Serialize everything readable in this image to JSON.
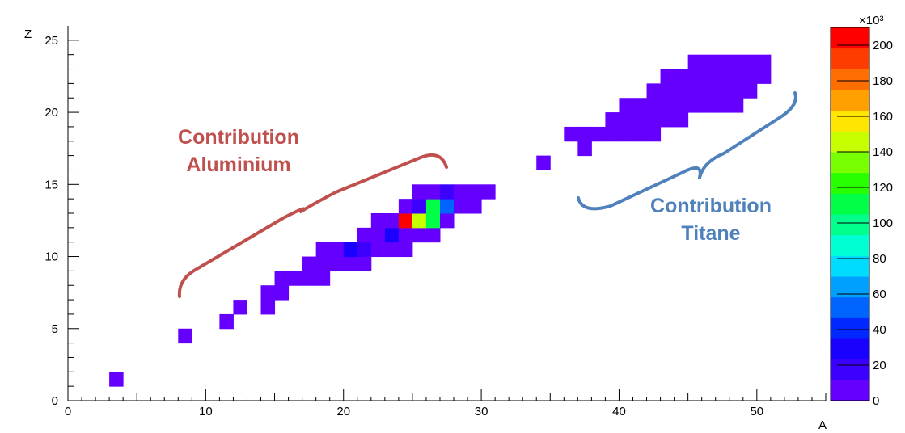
{
  "chart_data": {
    "type": "heatmap",
    "xlabel": "A",
    "ylabel": "Z",
    "xlim": [
      0,
      55
    ],
    "ylim": [
      0,
      26
    ],
    "x_ticks": [
      0,
      10,
      20,
      30,
      40,
      50
    ],
    "y_ticks": [
      0,
      5,
      10,
      15,
      20,
      25
    ],
    "grid": false,
    "colorbar": {
      "multiplier": "×10³",
      "range": [
        0,
        210
      ],
      "ticks": [
        0,
        20,
        40,
        60,
        80,
        100,
        120,
        140,
        160,
        180,
        200
      ],
      "colors": [
        "#6500ff",
        "#3c00ff",
        "#1a00ff",
        "#0028ff",
        "#0064ff",
        "#00a0ff",
        "#00dcff",
        "#00ffd2",
        "#00ff8c",
        "#00ff46",
        "#28ff00",
        "#78ff00",
        "#c8ff00",
        "#ffe600",
        "#ffa000",
        "#ff6e00",
        "#ff3c00",
        "#ff0000"
      ]
    },
    "cell_size": [
      1,
      1
    ],
    "cells": [
      {
        "a": 3,
        "z": 1,
        "value": 2
      },
      {
        "a": 8,
        "z": 4,
        "value": 2
      },
      {
        "a": 11,
        "z": 5,
        "value": 2
      },
      {
        "a": 12,
        "z": 6,
        "value": 2
      },
      {
        "a": 14,
        "z": 6,
        "value": 2
      },
      {
        "a": 14,
        "z": 7,
        "value": 2
      },
      {
        "a": 15,
        "z": 7,
        "value": 2
      },
      {
        "a": 15,
        "z": 8,
        "value": 2
      },
      {
        "a": 16,
        "z": 8,
        "value": 2
      },
      {
        "a": 17,
        "z": 8,
        "value": 2
      },
      {
        "a": 18,
        "z": 8,
        "value": 2
      },
      {
        "a": 17,
        "z": 9,
        "value": 2
      },
      {
        "a": 18,
        "z": 9,
        "value": 2
      },
      {
        "a": 19,
        "z": 9,
        "value": 2
      },
      {
        "a": 20,
        "z": 9,
        "value": 2
      },
      {
        "a": 21,
        "z": 9,
        "value": 2
      },
      {
        "a": 18,
        "z": 10,
        "value": 2
      },
      {
        "a": 19,
        "z": 10,
        "value": 2
      },
      {
        "a": 20,
        "z": 10,
        "value": 25
      },
      {
        "a": 21,
        "z": 10,
        "value": 12
      },
      {
        "a": 22,
        "z": 10,
        "value": 2
      },
      {
        "a": 23,
        "z": 10,
        "value": 2
      },
      {
        "a": 24,
        "z": 10,
        "value": 2
      },
      {
        "a": 21,
        "z": 11,
        "value": 2
      },
      {
        "a": 22,
        "z": 11,
        "value": 2
      },
      {
        "a": 23,
        "z": 11,
        "value": 30
      },
      {
        "a": 24,
        "z": 11,
        "value": 2
      },
      {
        "a": 25,
        "z": 11,
        "value": 2
      },
      {
        "a": 26,
        "z": 11,
        "value": 2
      },
      {
        "a": 22,
        "z": 12,
        "value": 2
      },
      {
        "a": 23,
        "z": 12,
        "value": 2
      },
      {
        "a": 24,
        "z": 12,
        "value": 205
      },
      {
        "a": 25,
        "z": 12,
        "value": 145
      },
      {
        "a": 26,
        "z": 12,
        "value": 115
      },
      {
        "a": 27,
        "z": 12,
        "value": 2
      },
      {
        "a": 24,
        "z": 13,
        "value": 2
      },
      {
        "a": 25,
        "z": 13,
        "value": 15
      },
      {
        "a": 26,
        "z": 13,
        "value": 110
      },
      {
        "a": 27,
        "z": 13,
        "value": 50
      },
      {
        "a": 28,
        "z": 13,
        "value": 2
      },
      {
        "a": 29,
        "z": 13,
        "value": 2
      },
      {
        "a": 25,
        "z": 14,
        "value": 2
      },
      {
        "a": 26,
        "z": 14,
        "value": 2
      },
      {
        "a": 27,
        "z": 14,
        "value": 12
      },
      {
        "a": 28,
        "z": 14,
        "value": 2
      },
      {
        "a": 29,
        "z": 14,
        "value": 2
      },
      {
        "a": 30,
        "z": 14,
        "value": 2
      },
      {
        "a": 34,
        "z": 16,
        "value": 2
      },
      {
        "a": 37,
        "z": 17,
        "value": 2
      },
      {
        "a": 36,
        "z": 18,
        "value": 2
      },
      {
        "a": 37,
        "z": 18,
        "value": 2
      },
      {
        "a": 38,
        "z": 18,
        "value": 2
      },
      {
        "a": 39,
        "z": 18,
        "value": 2
      },
      {
        "a": 40,
        "z": 18,
        "value": 2
      },
      {
        "a": 41,
        "z": 18,
        "value": 2
      },
      {
        "a": 42,
        "z": 18,
        "value": 2
      },
      {
        "a": 39,
        "z": 19,
        "value": 2
      },
      {
        "a": 40,
        "z": 19,
        "value": 2
      },
      {
        "a": 41,
        "z": 19,
        "value": 2
      },
      {
        "a": 42,
        "z": 19,
        "value": 2
      },
      {
        "a": 43,
        "z": 19,
        "value": 2
      },
      {
        "a": 44,
        "z": 19,
        "value": 2
      },
      {
        "a": 40,
        "z": 20,
        "value": 2
      },
      {
        "a": 41,
        "z": 20,
        "value": 2
      },
      {
        "a": 42,
        "z": 20,
        "value": 2
      },
      {
        "a": 43,
        "z": 20,
        "value": 2
      },
      {
        "a": 44,
        "z": 20,
        "value": 2
      },
      {
        "a": 45,
        "z": 20,
        "value": 2
      },
      {
        "a": 46,
        "z": 20,
        "value": 2
      },
      {
        "a": 47,
        "z": 20,
        "value": 2
      },
      {
        "a": 48,
        "z": 20,
        "value": 2
      },
      {
        "a": 42,
        "z": 21,
        "value": 2
      },
      {
        "a": 43,
        "z": 21,
        "value": 2
      },
      {
        "a": 44,
        "z": 21,
        "value": 2
      },
      {
        "a": 45,
        "z": 21,
        "value": 2
      },
      {
        "a": 46,
        "z": 21,
        "value": 2
      },
      {
        "a": 47,
        "z": 21,
        "value": 2
      },
      {
        "a": 48,
        "z": 21,
        "value": 2
      },
      {
        "a": 49,
        "z": 21,
        "value": 2
      },
      {
        "a": 43,
        "z": 22,
        "value": 2
      },
      {
        "a": 44,
        "z": 22,
        "value": 2
      },
      {
        "a": 45,
        "z": 22,
        "value": 2
      },
      {
        "a": 46,
        "z": 22,
        "value": 2
      },
      {
        "a": 47,
        "z": 22,
        "value": 2
      },
      {
        "a": 48,
        "z": 22,
        "value": 2
      },
      {
        "a": 49,
        "z": 22,
        "value": 2
      },
      {
        "a": 50,
        "z": 22,
        "value": 2
      },
      {
        "a": 45,
        "z": 23,
        "value": 2
      },
      {
        "a": 46,
        "z": 23,
        "value": 2
      },
      {
        "a": 47,
        "z": 23,
        "value": 2
      },
      {
        "a": 48,
        "z": 23,
        "value": 2
      },
      {
        "a": 49,
        "z": 23,
        "value": 2
      },
      {
        "a": 50,
        "z": 23,
        "value": 2
      }
    ],
    "annotations": [
      {
        "id": "aluminium",
        "lines": [
          "Contribution",
          "Aluminium"
        ],
        "color": "#c0504d"
      },
      {
        "id": "titane",
        "lines": [
          "Contribution",
          "Titane"
        ],
        "color": "#4f81bd"
      }
    ]
  }
}
